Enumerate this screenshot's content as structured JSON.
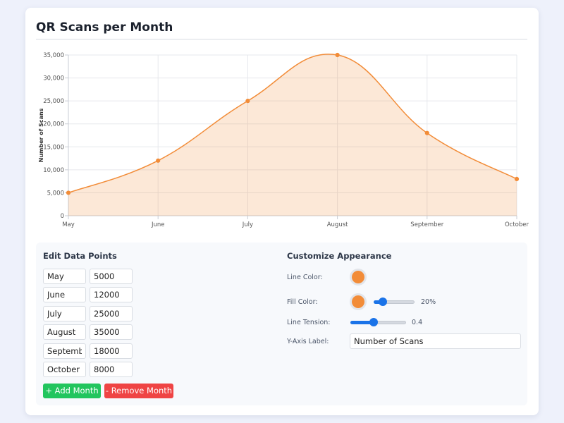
{
  "page": {
    "title": "QR Scans per Month"
  },
  "colors": {
    "line": "#f28c38",
    "fill": "#fbe3d1",
    "add": "#22c55e",
    "remove": "#ef4444",
    "accent": "#1a73e8"
  },
  "chart_data": {
    "type": "area",
    "categories": [
      "May",
      "June",
      "July",
      "August",
      "September",
      "October"
    ],
    "series": [
      {
        "values": [
          5000,
          12000,
          25000,
          35000,
          18000,
          8000
        ]
      }
    ],
    "ylabel": "Number of Scans",
    "ylim": [
      0,
      35000
    ],
    "yticks": [
      "0",
      "5,000",
      "10,000",
      "15,000",
      "20,000",
      "25,000",
      "30,000",
      "35,000"
    ],
    "grid": true,
    "fill_opacity": 0.2,
    "tension": 0.4
  },
  "editor": {
    "heading": "Edit Data Points",
    "rows": [
      {
        "month": "May",
        "value": "5000"
      },
      {
        "month": "June",
        "value": "12000"
      },
      {
        "month": "July",
        "value": "25000"
      },
      {
        "month": "August",
        "value": "35000"
      },
      {
        "month": "September",
        "value": "18000"
      },
      {
        "month": "October",
        "value": "8000"
      }
    ],
    "add_label": "+ Add Month",
    "remove_label": "- Remove Month"
  },
  "appearance": {
    "heading": "Customize Appearance",
    "line_color_label": "Line Color:",
    "fill_color_label": "Fill Color:",
    "fill_opacity_text": "20%",
    "fill_opacity": 0.2,
    "tension_label": "Line Tension:",
    "tension_text": "0.4",
    "tension": 0.4,
    "y_axis_label": "Y-Axis Label:",
    "y_axis_value": "Number of Scans"
  }
}
